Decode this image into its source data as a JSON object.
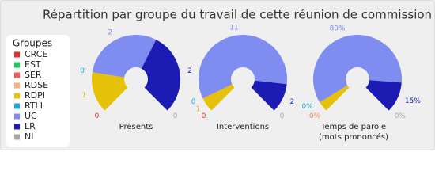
{
  "chart_data": {
    "type": "pie",
    "title": "Répartition par groupe du travail de cette réunion de commission",
    "legend_title": "Groupes",
    "categories": [
      "CRCE",
      "EST",
      "SER",
      "RDSE",
      "RDPI",
      "RTLI",
      "UC",
      "LR",
      "NI"
    ],
    "colors": [
      "#e0302a",
      "#22c55e",
      "#f05a5a",
      "#f6b27c",
      "#e6c10a",
      "#22a8d8",
      "#7f8cf0",
      "#1c1cb4",
      "#a8a8a8"
    ],
    "series": [
      {
        "name": "Présents",
        "values": [
          0,
          0,
          0,
          0,
          1,
          0,
          2,
          2,
          0
        ],
        "value_labels": [
          "0",
          null,
          null,
          null,
          "1",
          "0",
          "2",
          "2",
          "0"
        ]
      },
      {
        "name": "Interventions",
        "values": [
          0,
          0,
          0,
          0,
          1,
          0,
          11,
          2,
          0
        ],
        "value_labels": [
          "0",
          null,
          null,
          null,
          "1",
          "0",
          "11",
          "2",
          "0"
        ]
      },
      {
        "name": "Temps de parole (mots prononcés)",
        "values": [
          0,
          0,
          0,
          0,
          5,
          0,
          80,
          15,
          0
        ],
        "value_labels": [
          "0%",
          null,
          null,
          "0%",
          null,
          "0%",
          "80%",
          "15%",
          "0%"
        ]
      }
    ]
  }
}
